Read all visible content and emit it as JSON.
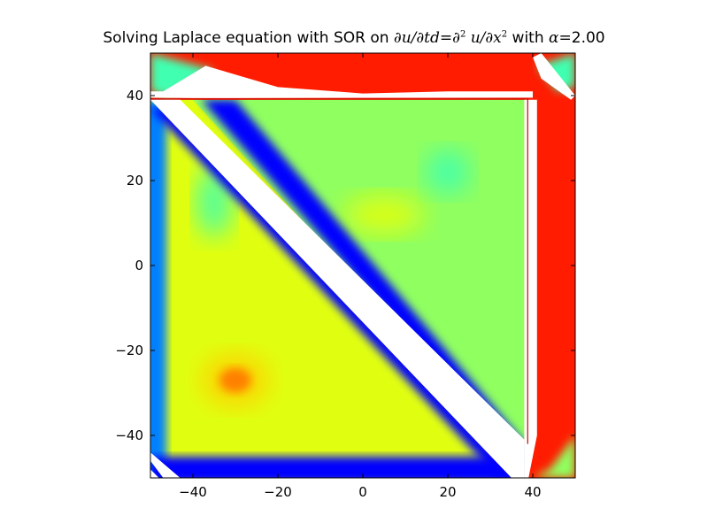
{
  "chart_data": {
    "type": "heatmap",
    "title": {
      "prefix": "Solving Laplace equation with SOR on ",
      "equation_lhs": "∂u/∂td=∂",
      "equation_sup1": "2",
      "equation_mid": " u/∂x",
      "equation_sup2": "2",
      "suffix_text": "  with ",
      "alpha": "α=",
      "alpha_value": "2.00"
    },
    "xlabel": "",
    "ylabel": "",
    "xlim": [
      -50,
      50
    ],
    "ylim": [
      -50,
      50
    ],
    "x_ticks": [
      -40,
      -20,
      0,
      20,
      40
    ],
    "y_ticks": [
      -40,
      -20,
      0,
      20,
      40
    ],
    "x_tick_labels": [
      "−40",
      "−20",
      "0",
      "20",
      "40"
    ],
    "y_tick_labels": [
      "−40",
      "−20",
      "0",
      "20",
      "40"
    ],
    "colormap": [
      "#00007f",
      "#0000ff",
      "#0080ff",
      "#00e0ff",
      "#40ffb0",
      "#90ff60",
      "#e0ff10",
      "#ffd000",
      "#ff8000",
      "#ff1c00",
      "#990000"
    ],
    "grid": false,
    "legend": "none",
    "colors": {
      "background": "#ffffff",
      "frame": "#000000",
      "gap": "#ffffff"
    },
    "regions": {
      "lower_triangle_level": 0.55,
      "upper_triangle_level": 0.52,
      "top_band_level": 0.93,
      "right_band_level": 0.93,
      "diagonal_edge_level": 0.12,
      "left_edge_level": 0.15,
      "bottom_edge_level": 0.12,
      "hot_blob": {
        "x": -30,
        "y": -27,
        "level": 0.68
      },
      "upper_warm_blob": {
        "x": 5,
        "y": 12,
        "level": 0.62
      },
      "upper_cool_blob": {
        "x": 20,
        "y": 22,
        "level": 0.38
      },
      "left_cool_blob": {
        "x": -35,
        "y": 15,
        "level": 0.36
      }
    }
  }
}
